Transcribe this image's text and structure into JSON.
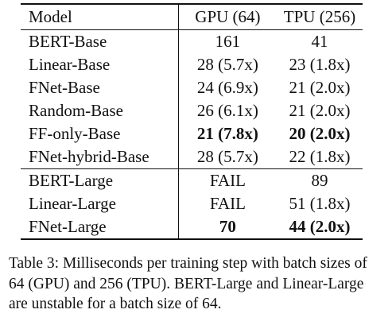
{
  "table": {
    "headers": {
      "model": "Model",
      "gpu": "GPU (64)",
      "tpu": "TPU (256)"
    },
    "base_rows": [
      {
        "model": "BERT-Base",
        "gpu": "161",
        "tpu": "41",
        "bold": false
      },
      {
        "model": "Linear-Base",
        "gpu": "28 (5.7x)",
        "tpu": "23 (1.8x)",
        "bold": false
      },
      {
        "model": "FNet-Base",
        "gpu": "24 (6.9x)",
        "tpu": "21 (2.0x)",
        "bold": false
      },
      {
        "model": "Random-Base",
        "gpu": "26 (6.1x)",
        "tpu": "21 (2.0x)",
        "bold": false
      },
      {
        "model": "FF-only-Base",
        "gpu": "21 (7.8x)",
        "tpu": "20 (2.0x)",
        "bold": true
      },
      {
        "model": "FNet-hybrid-Base",
        "gpu": "28 (5.7x)",
        "tpu": "22 (1.8x)",
        "bold": false
      }
    ],
    "large_rows": [
      {
        "model": "BERT-Large",
        "gpu": "FAIL",
        "tpu": "89",
        "bold": false
      },
      {
        "model": "Linear-Large",
        "gpu": "FAIL",
        "tpu": "51 (1.8x)",
        "bold": false
      },
      {
        "model": "FNet-Large",
        "gpu": "70",
        "tpu": "44 (2.0x)",
        "bold": true
      }
    ]
  },
  "caption": "Table 3: Milliseconds per training step with batch sizes of 64 (GPU) and 256 (TPU). BERT-Large and Linear-Large are unstable for a batch size of 64."
}
